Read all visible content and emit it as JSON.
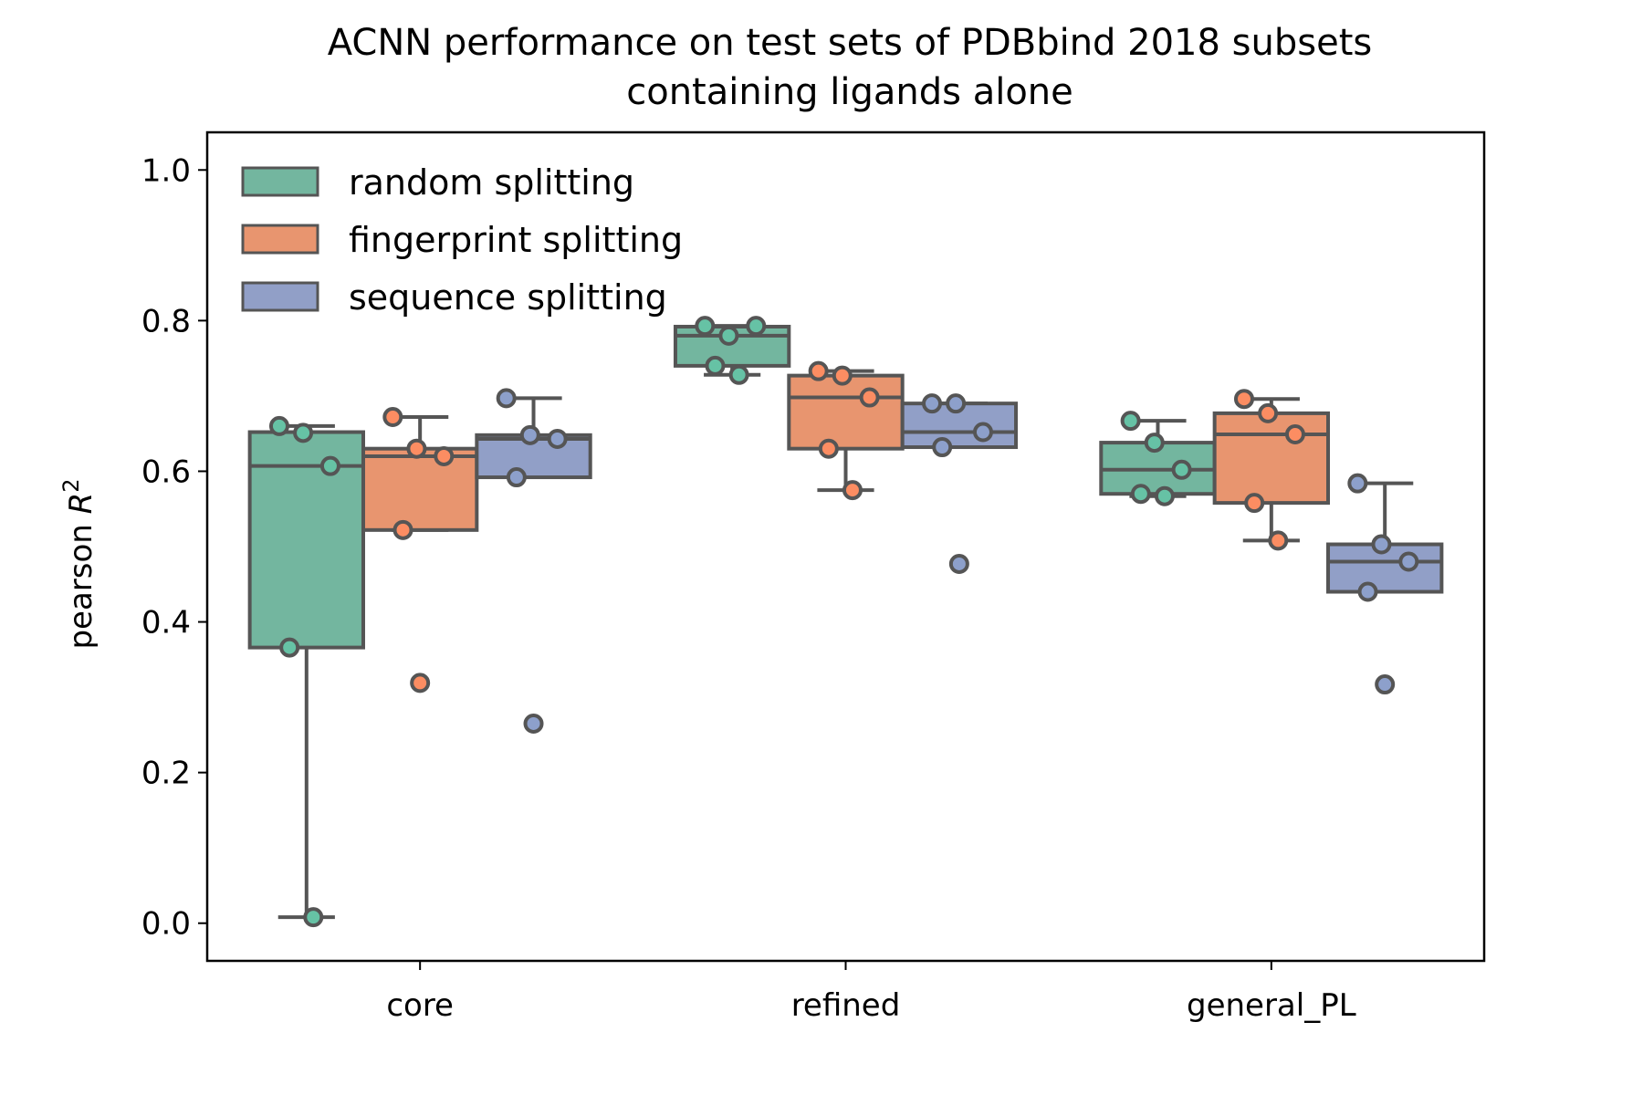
{
  "chart_data": {
    "type": "box",
    "title_line1": "ACNN performance on test sets of PDBbind 2018 subsets",
    "title_line2": "containing ligands alone",
    "ylabel_prefix": "pearson ",
    "ylabel_var": "R",
    "ylabel_sup": "2",
    "xlabel": "",
    "categories": [
      "core",
      "refined",
      "general_PL"
    ],
    "yticks": [
      "0.0",
      "0.2",
      "0.4",
      "0.6",
      "0.8",
      "1.0"
    ],
    "ylim": [
      -0.05,
      1.05
    ],
    "legend_position": "top-left",
    "grid": false,
    "series": [
      {
        "name": "random splitting",
        "color": "#73b69f",
        "dot_color": "#66c2a5",
        "boxes": [
          {
            "whislo": 0.008,
            "q1": 0.366,
            "med": 0.607,
            "q3": 0.652,
            "whishi": 0.66,
            "points": [
              0.66,
              0.651,
              0.607,
              0.366,
              0.008
            ],
            "outliers": []
          },
          {
            "whislo": 0.728,
            "q1": 0.74,
            "med": 0.78,
            "q3": 0.792,
            "whishi": 0.793,
            "points": [
              0.793,
              0.78,
              0.793,
              0.74,
              0.728
            ],
            "outliers": []
          },
          {
            "whislo": 0.567,
            "q1": 0.57,
            "med": 0.602,
            "q3": 0.638,
            "whishi": 0.667,
            "points": [
              0.667,
              0.638,
              0.602,
              0.57,
              0.567
            ],
            "outliers": []
          }
        ]
      },
      {
        "name": "fingerprint splitting",
        "color": "#e8956f",
        "dot_color": "#fc8d62",
        "boxes": [
          {
            "whislo": 0.522,
            "q1": 0.522,
            "med": 0.62,
            "q3": 0.63,
            "whishi": 0.672,
            "points": [
              0.672,
              0.63,
              0.62,
              0.522
            ],
            "outliers": [
              0.319
            ]
          },
          {
            "whislo": 0.575,
            "q1": 0.63,
            "med": 0.698,
            "q3": 0.727,
            "whishi": 0.733,
            "points": [
              0.733,
              0.727,
              0.698,
              0.63,
              0.575
            ],
            "outliers": []
          },
          {
            "whislo": 0.508,
            "q1": 0.558,
            "med": 0.649,
            "q3": 0.677,
            "whishi": 0.696,
            "points": [
              0.696,
              0.677,
              0.649,
              0.558,
              0.508
            ],
            "outliers": []
          }
        ]
      },
      {
        "name": "sequence splitting",
        "color": "#919fc7",
        "dot_color": "#8da0cb",
        "boxes": [
          {
            "whislo": 0.592,
            "q1": 0.592,
            "med": 0.643,
            "q3": 0.648,
            "whishi": 0.697,
            "points": [
              0.697,
              0.648,
              0.643,
              0.592
            ],
            "outliers": [
              0.265
            ]
          },
          {
            "whislo": 0.632,
            "q1": 0.632,
            "med": 0.652,
            "q3": 0.69,
            "whishi": 0.69,
            "points": [
              0.69,
              0.69,
              0.652,
              0.632
            ],
            "outliers": [
              0.477
            ]
          },
          {
            "whislo": 0.44,
            "q1": 0.44,
            "med": 0.48,
            "q3": 0.503,
            "whishi": 0.584,
            "points": [
              0.584,
              0.503,
              0.48,
              0.44
            ],
            "outliers": [
              0.317
            ]
          }
        ]
      }
    ]
  }
}
